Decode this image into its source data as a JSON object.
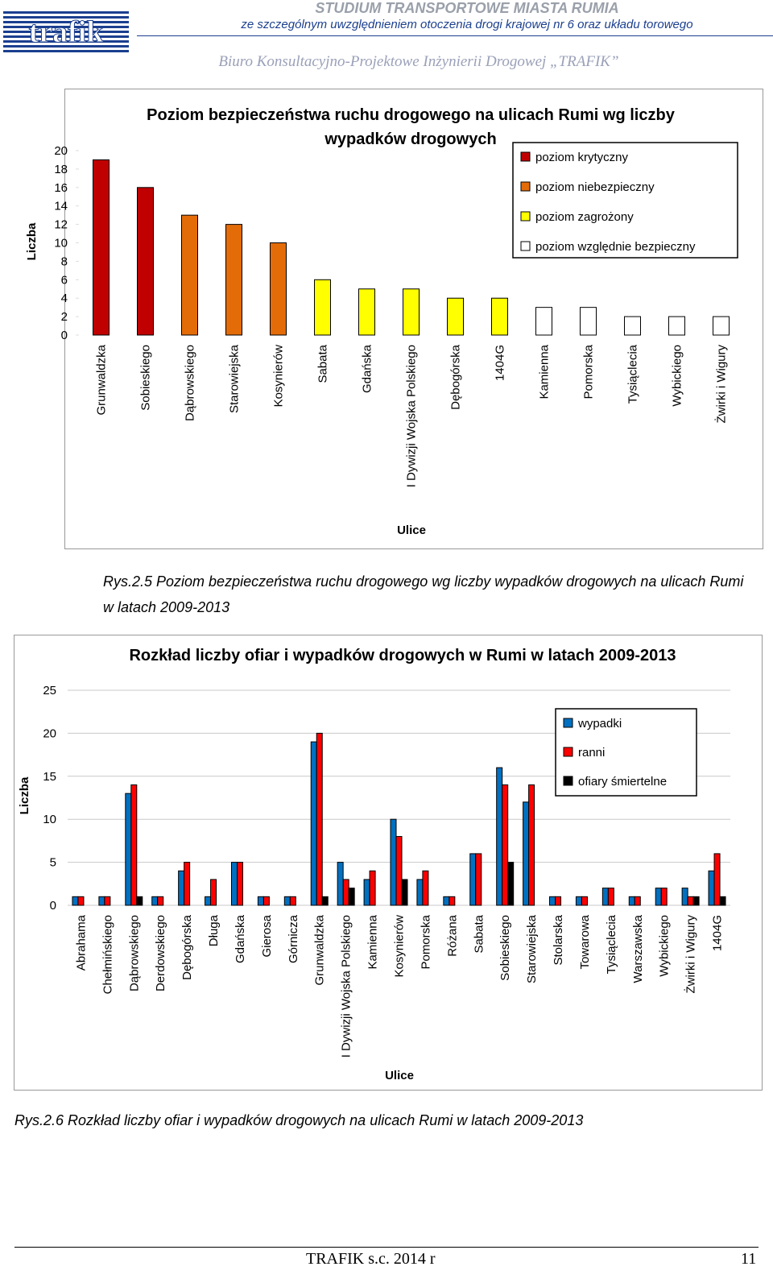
{
  "header": {
    "logo": "trafik",
    "title": "STUDIUM TRANSPORTOWE MIASTA RUMIA",
    "subtitle": "ze szczególnym uwzględnieniem otoczenia drogi krajowej nr 6 oraz układu torowego",
    "company": "Biuro Konsultacyjno-Projektowe Inżynierii Drogowej „TRAFIK”"
  },
  "chart_data": [
    {
      "type": "bar",
      "title": "Poziom bezpieczeństwa ruchu drogowego na ulicach Rumi wg liczby wypadków drogowych",
      "x_label": "Ulice",
      "y_label": "Liczba",
      "categories": [
        "Grunwaldzka",
        "Sobieskiego",
        "Dąbrowskiego",
        "Starowiejska",
        "Kosynierów",
        "Sabata",
        "Gdańska",
        "I Dywizji  Wojska Polskiego",
        "Dębogórska",
        "1404G",
        "Kamienna",
        "Pomorska",
        "Tysiąclecia",
        "Wybickiego",
        "Żwirki i Wigury"
      ],
      "series": [
        {
          "name": "poziom krytyczny",
          "color": "#c00000",
          "values": [
            19,
            16,
            null,
            null,
            null,
            null,
            null,
            null,
            null,
            null,
            null,
            null,
            null,
            null,
            null
          ]
        },
        {
          "name": "poziom niebezpieczny",
          "color": "#e36c09",
          "values": [
            null,
            null,
            13,
            12,
            10,
            null,
            null,
            null,
            null,
            null,
            null,
            null,
            null,
            null,
            null
          ]
        },
        {
          "name": "poziom zagrożony",
          "color": "#ffff00",
          "values": [
            null,
            null,
            null,
            null,
            null,
            6,
            5,
            5,
            4,
            4,
            null,
            null,
            null,
            null,
            null
          ]
        },
        {
          "name": "poziom względnie bezpieczny",
          "color": "#ffffff",
          "values": [
            null,
            null,
            null,
            null,
            null,
            null,
            null,
            null,
            null,
            null,
            3,
            3,
            2,
            2,
            2
          ]
        }
      ],
      "ylim": [
        0,
        20
      ],
      "yticks": [
        0,
        2,
        4,
        6,
        8,
        10,
        12,
        14,
        16,
        18,
        20
      ],
      "grid": false,
      "stacked_slots": true
    },
    {
      "type": "bar",
      "title": "Rozkład liczby ofiar i wypadków drogowych w Rumi w latach 2009-2013",
      "x_label": "Ulice",
      "y_label": "Liczba",
      "categories": [
        "Abrahama",
        "Chełmińskiego",
        "Dąbrowskiego",
        "Derdowskiego",
        "Dębogórska",
        "Długa",
        "Gdańska",
        "Gierosa",
        "Górnicza",
        "Grunwaldzka",
        "I Dywizji  Wojska Polskiego",
        "Kamienna",
        "Kosynierów",
        "Pomorska",
        "Różana",
        "Sabata",
        "Sobieskiego",
        "Starowiejska",
        "Stolarska",
        "Towarowa",
        "Tysiąclecia",
        "Warszawska",
        "Wybickiego",
        "Żwirki i Wigury",
        "1404G"
      ],
      "series": [
        {
          "name": "wypadki",
          "color": "#0070c0",
          "values": [
            1,
            1,
            13,
            1,
            4,
            1,
            5,
            1,
            1,
            19,
            5,
            3,
            10,
            3,
            1,
            6,
            16,
            12,
            1,
            1,
            2,
            1,
            2,
            2,
            4
          ]
        },
        {
          "name": "ranni",
          "color": "#ff0000",
          "values": [
            1,
            1,
            14,
            1,
            5,
            3,
            5,
            1,
            1,
            20,
            3,
            4,
            8,
            4,
            1,
            6,
            14,
            14,
            1,
            1,
            2,
            1,
            2,
            1,
            6
          ]
        },
        {
          "name": "ofiary śmiertelne",
          "color": "#000000",
          "values": [
            0,
            0,
            1,
            0,
            0,
            0,
            0,
            0,
            0,
            1,
            2,
            0,
            3,
            0,
            0,
            0,
            5,
            0,
            0,
            0,
            0,
            0,
            0,
            1,
            1
          ]
        }
      ],
      "ylim": [
        0,
        25
      ],
      "yticks": [
        0,
        5,
        10,
        15,
        20,
        25
      ],
      "grid": true,
      "stacked_slots": false
    }
  ],
  "captions": [
    "Rys.2.5 Poziom bezpieczeństwa ruchu drogowego wg liczby wypadków drogowych na ulicach Rumi w latach 2009-2013",
    "Rys.2.6 Rozkład liczby ofiar i wypadków drogowych na ulicach Rumi w latach 2009-2013"
  ],
  "footer": {
    "text": "TRAFIK s.c. 2014 r",
    "page": "11"
  }
}
